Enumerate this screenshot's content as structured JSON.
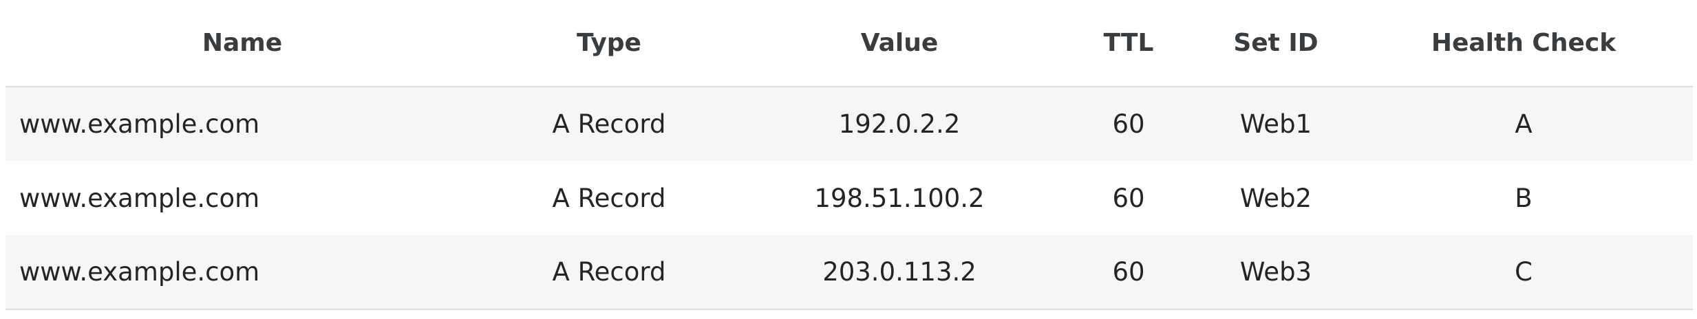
{
  "table": {
    "headers": {
      "name": "Name",
      "type": "Type",
      "value": "Value",
      "ttl": "TTL",
      "set_id": "Set ID",
      "health_check": "Health Check"
    },
    "rows": [
      {
        "name": "www.example.com",
        "type": "A Record",
        "value": "192.0.2.2",
        "ttl": "60",
        "set_id": "Web1",
        "health_check": "A"
      },
      {
        "name": "www.example.com",
        "type": "A Record",
        "value": "198.51.100.2",
        "ttl": "60",
        "set_id": "Web2",
        "health_check": "B"
      },
      {
        "name": "www.example.com",
        "type": "A Record",
        "value": "203.0.113.2",
        "ttl": "60",
        "set_id": "Web3",
        "health_check": "C"
      }
    ]
  }
}
